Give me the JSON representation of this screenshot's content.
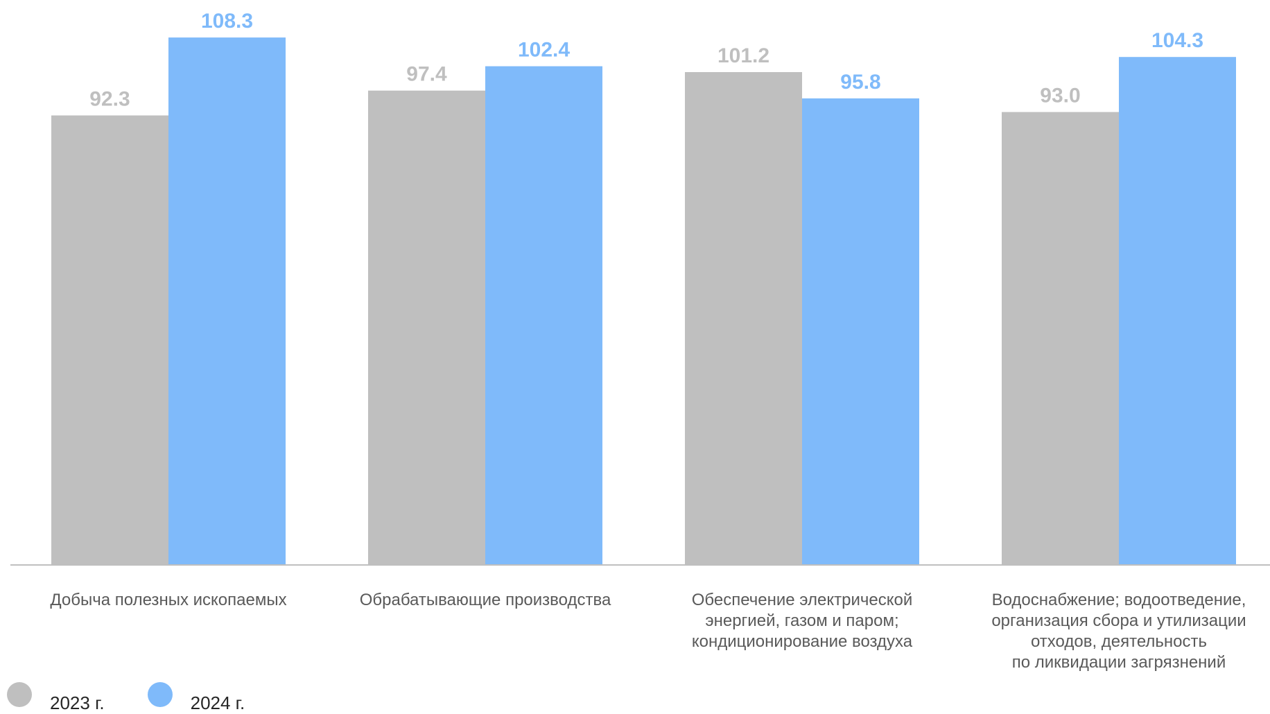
{
  "chart_data": {
    "type": "bar",
    "categories": [
      [
        "Добыча полезных ископаемых"
      ],
      [
        "Обрабатывающие производства"
      ],
      [
        "Обеспечение электрической",
        "энергией, газом и паром;",
        "кондиционирование воздуха"
      ],
      [
        "Водоснабжение; водоотведение,",
        "организация сбора и утилизации",
        "отходов, деятельность",
        "по ликвидации загрязнений"
      ]
    ],
    "series": [
      {
        "name": "2023 г.",
        "values": [
          92.3,
          97.4,
          101.2,
          93.0
        ],
        "labels": [
          "92.3",
          "97.4",
          "101.2",
          "93.0"
        ],
        "color": "#bfbfbf"
      },
      {
        "name": "2024 г.",
        "values": [
          108.3,
          102.4,
          95.8,
          104.3
        ],
        "labels": [
          "108.3",
          "102.4",
          "95.8",
          "104.3"
        ],
        "color": "#7fbafa"
      }
    ],
    "ylim": [
      0,
      116
    ],
    "grid": false,
    "legend_position": "bottom-left",
    "axis_color": "#bfbfbf"
  }
}
